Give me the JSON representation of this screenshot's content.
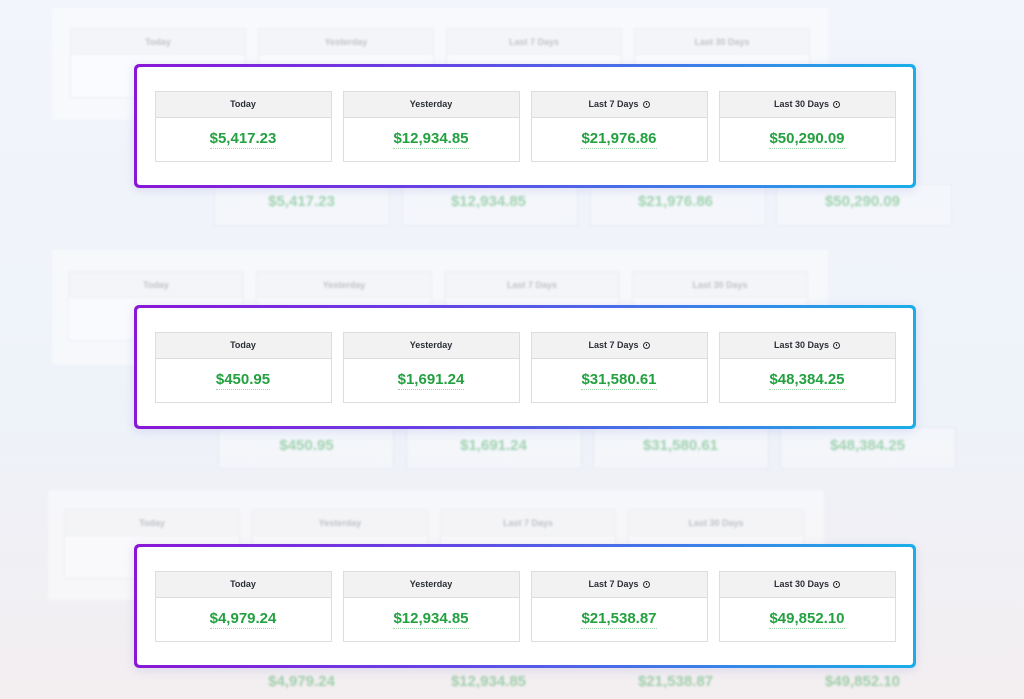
{
  "colors": {
    "amount": "#23a140",
    "border_start": "#8a17d6",
    "border_end": "#1aaee8"
  },
  "labels": {
    "today": "Today",
    "yesterday": "Yesterday",
    "last7": "Last 7 Days",
    "last30": "Last 30 Days"
  },
  "panels": [
    {
      "today": "$5,417.23",
      "yesterday": "$12,934.85",
      "last7": "$21,976.86",
      "last30": "$50,290.09"
    },
    {
      "today": "$450.95",
      "yesterday": "$1,691.24",
      "last7": "$31,580.61",
      "last30": "$48,384.25"
    },
    {
      "today": "$4,979.24",
      "yesterday": "$12,934.85",
      "last7": "$21,538.87",
      "last30": "$49,852.10"
    }
  ],
  "icons": {
    "period_info": "clock-icon"
  }
}
